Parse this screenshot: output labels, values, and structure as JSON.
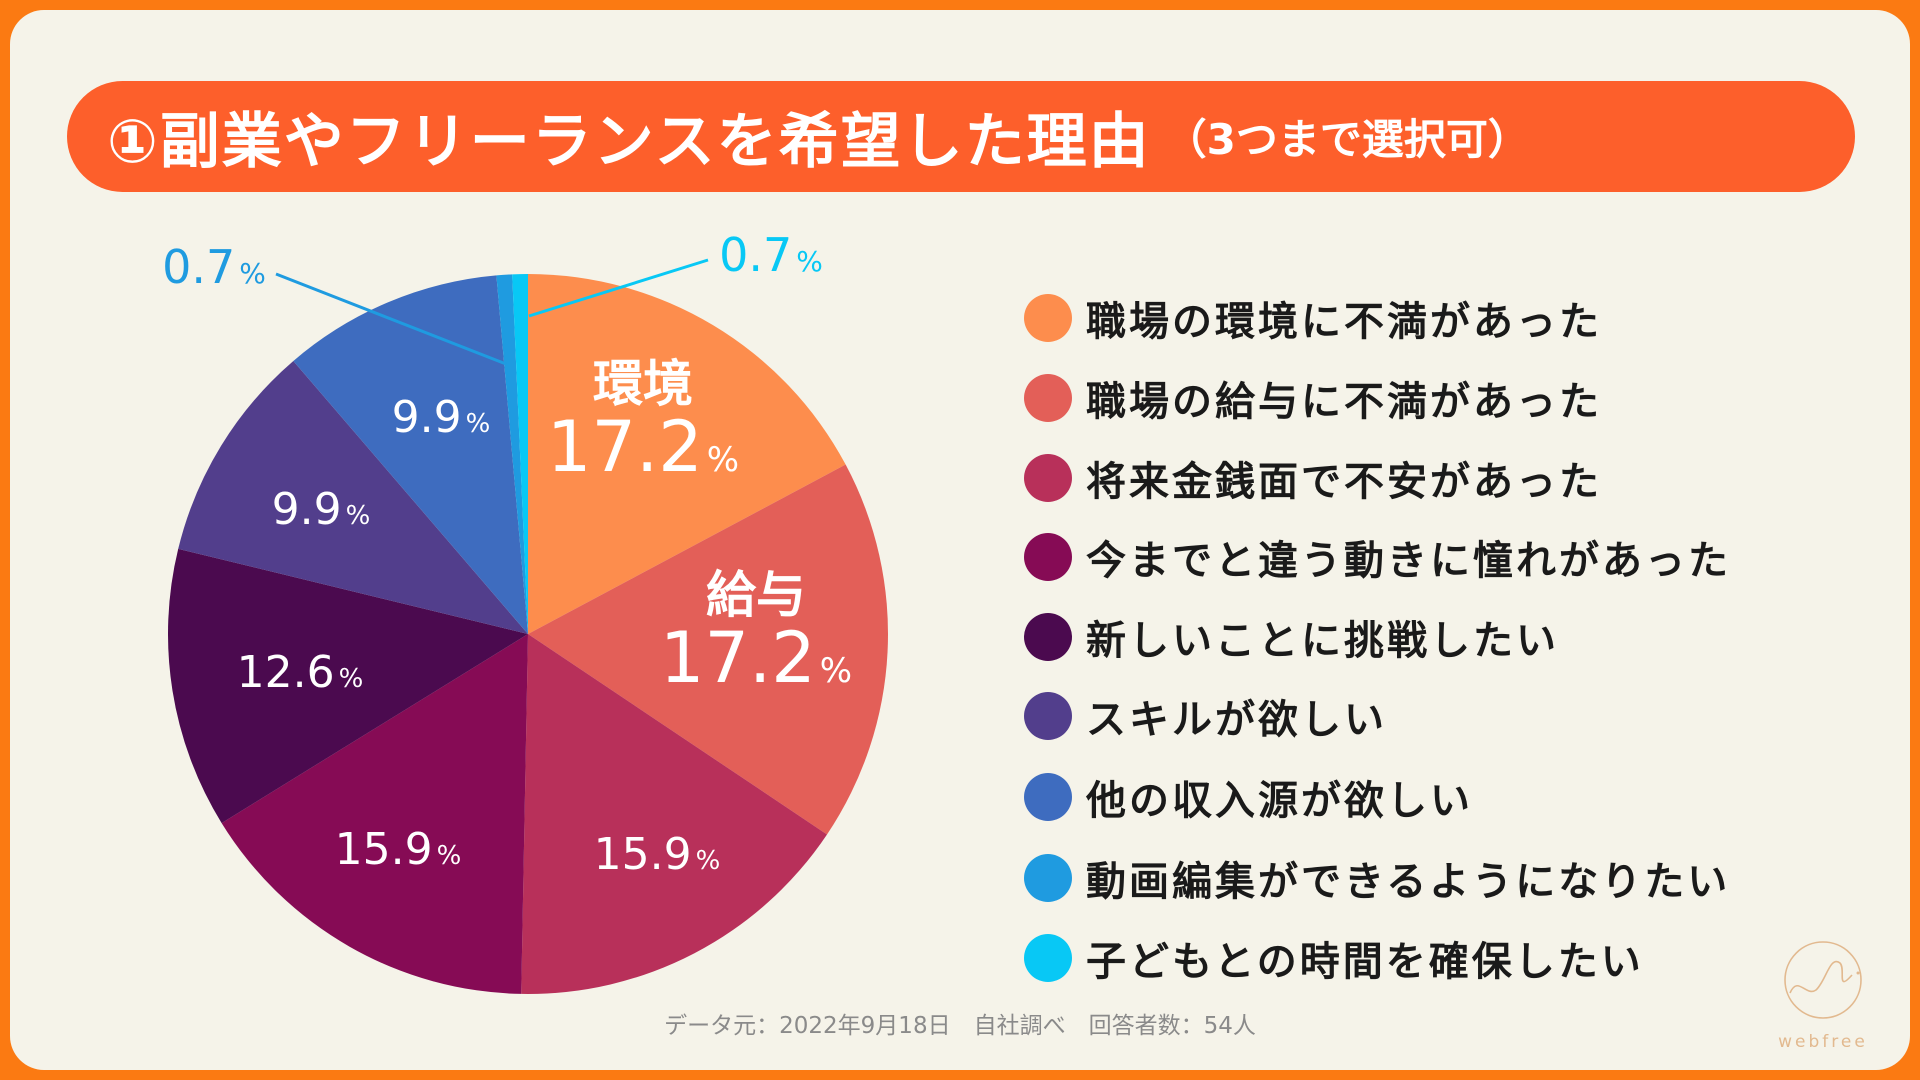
{
  "title": {
    "main": "①副業やフリーランスを希望した理由",
    "sub": "（3つまで選択可）"
  },
  "chart_data": {
    "type": "pie",
    "title": "①副業やフリーランスを希望した理由（3つまで選択可）",
    "unit": "%",
    "start": "top, clockwise",
    "slices": [
      {
        "label": "職場の環境に不満があった",
        "short": "環境",
        "value": 17.2,
        "color": "#fd8d4d"
      },
      {
        "label": "職場の給与に不満があった",
        "short": "給与",
        "value": 17.2,
        "color": "#e35f58"
      },
      {
        "label": "将来金銭面で不安があった",
        "short": "",
        "value": 15.9,
        "color": "#b8305a"
      },
      {
        "label": "今までと違う動きに憧れがあった",
        "short": "",
        "value": 15.9,
        "color": "#860b55"
      },
      {
        "label": "新しいことに挑戦したい",
        "short": "",
        "value": 12.6,
        "color": "#4b0a4f"
      },
      {
        "label": "スキルが欲しい",
        "short": "",
        "value": 9.9,
        "color": "#523e8c"
      },
      {
        "label": "他の収入源が欲しい",
        "short": "",
        "value": 9.9,
        "color": "#3e6cbf"
      },
      {
        "label": "動画編集ができるようになりたい",
        "short": "",
        "value": 0.7,
        "color": "#1f9be0"
      },
      {
        "label": "子どもとの時間を確保したい",
        "short": "",
        "value": 0.7,
        "color": "#08c8f5"
      }
    ],
    "legend_placement": "right"
  },
  "footer": "データ元：2022年9月18日　自社調べ　回答者数：54人",
  "logo": "webfree",
  "colors": {
    "border": "#fb7a12",
    "title_bar": "#fd5f2b",
    "background": "#f5f3e9"
  }
}
